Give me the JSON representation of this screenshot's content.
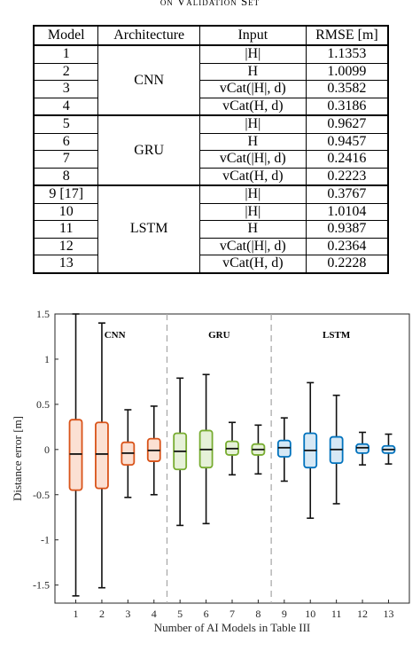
{
  "caption": "on Validation Set",
  "table": {
    "headers": [
      "Model",
      "Architecture",
      "Input",
      "RMSE [m]"
    ],
    "groups": [
      {
        "architecture": "CNN",
        "rows": [
          {
            "model": "1",
            "input": "|H|",
            "rmse": "1.1353"
          },
          {
            "model": "2",
            "input": "H",
            "rmse": "1.0099"
          },
          {
            "model": "3",
            "input": "vCat(|H|, d)",
            "rmse": "0.3582"
          },
          {
            "model": "4",
            "input": "vCat(H, d)",
            "rmse": "0.3186"
          }
        ]
      },
      {
        "architecture": "GRU",
        "rows": [
          {
            "model": "5",
            "input": "|H|",
            "rmse": "0.9627"
          },
          {
            "model": "6",
            "input": "H",
            "rmse": "0.9457"
          },
          {
            "model": "7",
            "input": "vCat(|H|, d)",
            "rmse": "0.2416"
          },
          {
            "model": "8",
            "input": "vCat(H, d)",
            "rmse": "0.2223"
          }
        ]
      },
      {
        "architecture": "LSTM",
        "rows": [
          {
            "model": "9 [17]",
            "input": "|H|",
            "rmse": "0.3767"
          },
          {
            "model": "10",
            "input": "|H|",
            "rmse": "1.0104"
          },
          {
            "model": "11",
            "input": "H",
            "rmse": "0.9387"
          },
          {
            "model": "12",
            "input": "vCat(|H|, d)",
            "rmse": "0.2364"
          },
          {
            "model": "13",
            "input": "vCat(H, d)",
            "rmse": "0.2228"
          }
        ]
      }
    ]
  },
  "chart_data": {
    "type": "box",
    "xlabel": "Number of AI Models in Table III",
    "ylabel": "Distance error [m]",
    "ylim": [
      -1.7,
      1.5
    ],
    "yticks": [
      -1.5,
      -1,
      -0.5,
      0,
      0.5,
      1,
      1.5
    ],
    "ytick_labels": [
      "-1.5",
      "-1",
      "-0.5",
      "0",
      "0.5",
      "1",
      "1.5"
    ],
    "categories": [
      "1",
      "2",
      "3",
      "4",
      "5",
      "6",
      "7",
      "8",
      "9",
      "10",
      "11",
      "12",
      "13"
    ],
    "group_labels": [
      "CNN",
      "GRU",
      "LSTM"
    ],
    "group_colors": {
      "CNN": "#d95319",
      "GRU": "#77ac30",
      "LSTM": "#0072bd"
    },
    "group_fills": {
      "CNN": "#fbe0d3",
      "GRU": "#e6f1d8",
      "LSTM": "#d6e8f5"
    },
    "boxes": [
      {
        "model": 1,
        "group": "CNN",
        "whisker_low": -1.62,
        "q1": -0.45,
        "median": -0.05,
        "q3": 0.33,
        "whisker_high": 1.5
      },
      {
        "model": 2,
        "group": "CNN",
        "whisker_low": -1.53,
        "q1": -0.43,
        "median": -0.05,
        "q3": 0.3,
        "whisker_high": 1.4
      },
      {
        "model": 3,
        "group": "CNN",
        "whisker_low": -0.53,
        "q1": -0.17,
        "median": -0.04,
        "q3": 0.08,
        "whisker_high": 0.44
      },
      {
        "model": 4,
        "group": "CNN",
        "whisker_low": -0.5,
        "q1": -0.13,
        "median": -0.01,
        "q3": 0.12,
        "whisker_high": 0.48
      },
      {
        "model": 5,
        "group": "GRU",
        "whisker_low": -0.84,
        "q1": -0.22,
        "median": -0.02,
        "q3": 0.18,
        "whisker_high": 0.79
      },
      {
        "model": 6,
        "group": "GRU",
        "whisker_low": -0.82,
        "q1": -0.2,
        "median": 0.0,
        "q3": 0.21,
        "whisker_high": 0.83
      },
      {
        "model": 7,
        "group": "GRU",
        "whisker_low": -0.28,
        "q1": -0.06,
        "median": 0.01,
        "q3": 0.09,
        "whisker_high": 0.3
      },
      {
        "model": 8,
        "group": "GRU",
        "whisker_low": -0.27,
        "q1": -0.06,
        "median": 0.0,
        "q3": 0.06,
        "whisker_high": 0.27
      },
      {
        "model": 9,
        "group": "LSTM",
        "whisker_low": -0.35,
        "q1": -0.08,
        "median": 0.02,
        "q3": 0.1,
        "whisker_high": 0.35
      },
      {
        "model": 10,
        "group": "LSTM",
        "whisker_low": -0.76,
        "q1": -0.2,
        "median": -0.01,
        "q3": 0.18,
        "whisker_high": 0.74
      },
      {
        "model": 11,
        "group": "LSTM",
        "whisker_low": -0.6,
        "q1": -0.15,
        "median": 0.0,
        "q3": 0.14,
        "whisker_high": 0.6
      },
      {
        "model": 12,
        "group": "LSTM",
        "whisker_low": -0.17,
        "q1": -0.04,
        "median": 0.02,
        "q3": 0.06,
        "whisker_high": 0.19
      },
      {
        "model": 13,
        "group": "LSTM",
        "whisker_low": -0.16,
        "q1": -0.04,
        "median": 0.0,
        "q3": 0.04,
        "whisker_high": 0.17
      }
    ],
    "group_separators_after": [
      4,
      8
    ],
    "grid": false
  }
}
